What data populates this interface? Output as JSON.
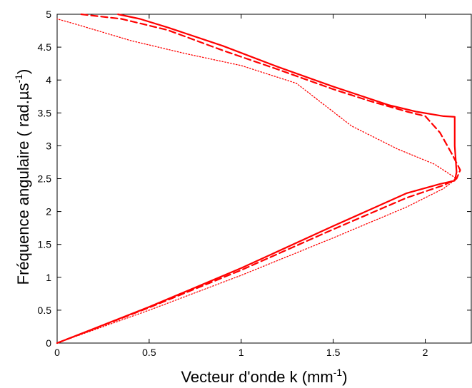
{
  "chart_data": {
    "type": "line",
    "xlabel": "Vecteur d'onde k (mm",
    "xlabel_sup": "-1",
    "xlabel_end": ")",
    "ylabel": "Fréquence angulaire ( rad.µs",
    "ylabel_sup": "-1",
    "ylabel_end": ")",
    "xlim": [
      0,
      2.25
    ],
    "ylim": [
      0,
      5
    ],
    "xticks": [
      0,
      0.5,
      1,
      1.5,
      2
    ],
    "xtick_labels": [
      "0",
      "0.5",
      "1",
      "1.5",
      "2"
    ],
    "yticks": [
      0,
      0.5,
      1,
      1.5,
      2,
      2.5,
      3,
      3.5,
      4,
      4.5,
      5
    ],
    "ytick_labels": [
      "0",
      "0.5",
      "1",
      "1.5",
      "2",
      "2.5",
      "3",
      "3.5",
      "4",
      "4.5",
      "5"
    ],
    "grid": false,
    "color": "#ff0000",
    "series": [
      {
        "style": "solid",
        "points": [
          [
            0,
            0
          ],
          [
            0.5,
            0.55
          ],
          [
            1,
            1.14
          ],
          [
            1.5,
            1.78
          ],
          [
            1.9,
            2.28
          ],
          [
            2.08,
            2.42
          ],
          [
            2.13,
            2.45
          ],
          [
            2.16,
            2.47
          ],
          [
            2.17,
            2.6
          ],
          [
            2.16,
            3.0
          ],
          [
            2.16,
            3.44
          ],
          [
            2.1,
            3.45
          ],
          [
            1.95,
            3.52
          ],
          [
            1.8,
            3.62
          ],
          [
            1.5,
            3.9
          ],
          [
            1.2,
            4.2
          ],
          [
            0.9,
            4.52
          ],
          [
            0.6,
            4.8
          ],
          [
            0.45,
            4.93
          ],
          [
            0.33,
            5.0
          ]
        ]
      },
      {
        "style": "dashed",
        "points": [
          [
            0,
            0
          ],
          [
            0.5,
            0.54
          ],
          [
            1,
            1.11
          ],
          [
            1.5,
            1.73
          ],
          [
            1.9,
            2.21
          ],
          [
            2.1,
            2.4
          ],
          [
            2.17,
            2.5
          ],
          [
            2.19,
            2.63
          ],
          [
            2.15,
            2.85
          ],
          [
            2.08,
            3.2
          ],
          [
            2.0,
            3.45
          ],
          [
            1.9,
            3.52
          ],
          [
            1.7,
            3.68
          ],
          [
            1.5,
            3.86
          ],
          [
            1.2,
            4.16
          ],
          [
            0.9,
            4.45
          ],
          [
            0.6,
            4.76
          ],
          [
            0.35,
            4.93
          ],
          [
            0.13,
            5.0
          ]
        ]
      },
      {
        "style": "dotted",
        "points": [
          [
            0,
            0
          ],
          [
            0.5,
            0.5
          ],
          [
            1,
            1.03
          ],
          [
            1.5,
            1.6
          ],
          [
            1.9,
            2.07
          ],
          [
            2.1,
            2.35
          ],
          [
            2.17,
            2.5
          ],
          [
            2.05,
            2.72
          ],
          [
            1.85,
            2.95
          ],
          [
            1.6,
            3.3
          ],
          [
            1.3,
            3.95
          ],
          [
            1.0,
            4.22
          ],
          [
            0.7,
            4.4
          ],
          [
            0.4,
            4.6
          ],
          [
            0.1,
            4.85
          ],
          [
            0,
            4.93
          ]
        ]
      }
    ]
  }
}
